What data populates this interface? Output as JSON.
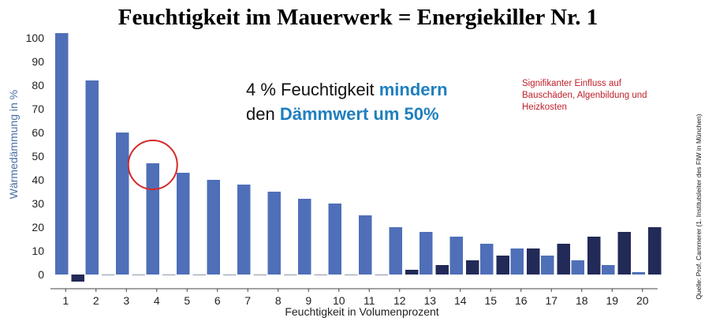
{
  "chart_data": {
    "type": "bar",
    "title": "Feuchtigkeit im Mauerwerk = Energiekiller Nr. 1",
    "xlabel": "Feuchtigkeit in Volumenprozent",
    "ylabel": "Wärmedämmung in %",
    "categories": [
      "1",
      "2",
      "3",
      "4",
      "5",
      "6",
      "7",
      "8",
      "9",
      "10",
      "11",
      "12",
      "13",
      "14",
      "15",
      "16",
      "17",
      "18",
      "19",
      "20"
    ],
    "series": [
      {
        "color": "#4f6fb8",
        "values": [
          102,
          82,
          60,
          47,
          43,
          40,
          38,
          35,
          32,
          30,
          25,
          20,
          18,
          16,
          13,
          11,
          8,
          6,
          4,
          1
        ]
      },
      {
        "color": "#222a58",
        "values": [
          -3,
          0,
          0,
          0,
          0,
          0,
          0,
          0,
          0,
          0,
          0,
          2,
          4,
          6,
          8,
          11,
          13,
          16,
          18,
          20
        ]
      }
    ],
    "yticks": [
      0,
      10,
      20,
      30,
      40,
      50,
      60,
      70,
      80,
      90,
      100
    ],
    "ylim": [
      -6,
      106
    ],
    "grid": false,
    "highlight_category": "4",
    "highlight_color": "#d62828"
  },
  "annotation": {
    "line1_prefix": "4 % Feuchtigkeit ",
    "line1_highlight": "mindern",
    "line2_prefix": "den ",
    "line2_highlight": "Dämmwert um 50%"
  },
  "side_note": "Signifikanter Einfluss auf Bauschäden, Algenbildung und Heizkosten",
  "source": "Quelle: Prof. Cammerer (1. Institutsleiter des FIW in München)"
}
